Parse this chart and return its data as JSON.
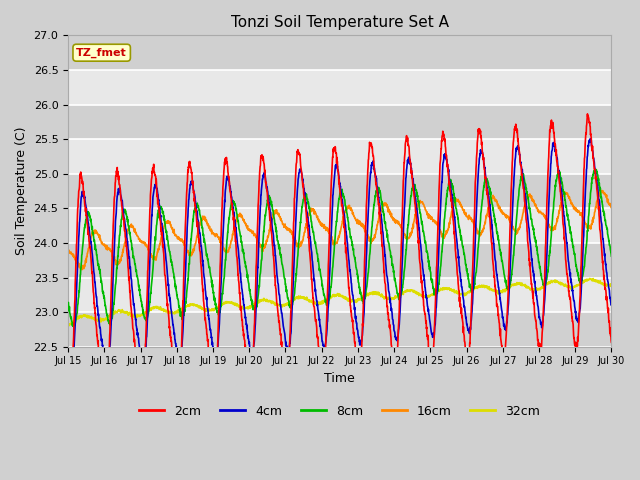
{
  "title": "Tonzi Soil Temperature Set A",
  "xlabel": "Time",
  "ylabel": "Soil Temperature (C)",
  "ylim": [
    22.5,
    27.0
  ],
  "xlim": [
    15,
    30
  ],
  "annotation": "TZ_fmet",
  "annotation_color": "#cc0000",
  "annotation_bg": "#ffffcc",
  "annotation_edge": "#999900",
  "fig_bg": "#d0d0d0",
  "plot_bg": "#e8e8e8",
  "band_color": "#d0d0d0",
  "line_colors": {
    "2cm": "#ff0000",
    "4cm": "#0000cc",
    "8cm": "#00bb00",
    "16cm": "#ff8800",
    "32cm": "#dddd00"
  },
  "legend_labels": [
    "2cm",
    "4cm",
    "8cm",
    "16cm",
    "32cm"
  ],
  "yticks": [
    22.5,
    23.0,
    23.5,
    24.0,
    24.5,
    25.0,
    25.5,
    26.0,
    26.5,
    27.0
  ],
  "xtick_days": [
    15,
    16,
    17,
    18,
    19,
    20,
    21,
    22,
    23,
    24,
    25,
    26,
    27,
    28,
    29,
    30
  ],
  "n_points": 2160,
  "start_day": 15,
  "end_day": 30
}
